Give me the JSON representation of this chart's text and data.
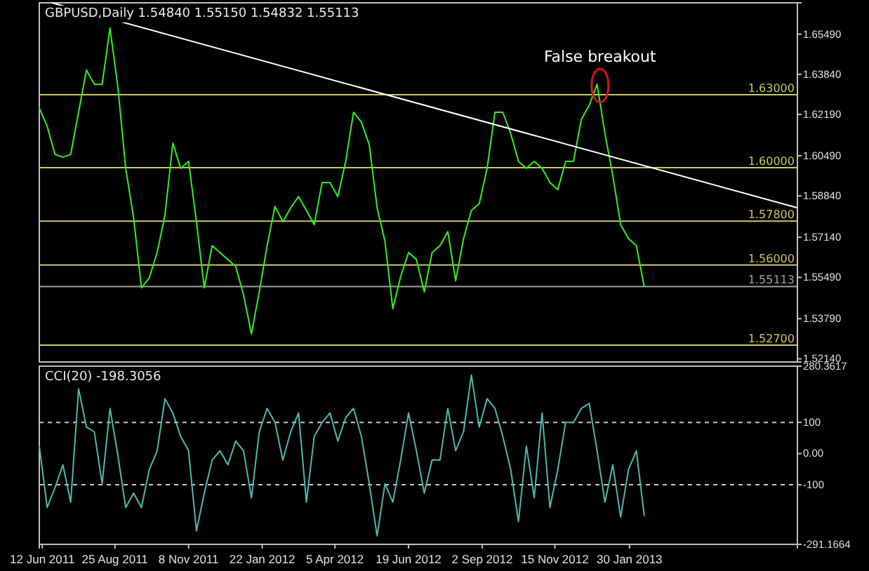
{
  "chart_data": [
    {
      "type": "line",
      "title": "GBPUSD,Daily 1.54840 1.55150 1.54832 1.55113",
      "x": [
        "2011-06-09",
        "2011-06-17",
        "2011-06-25",
        "2011-07-03",
        "2011-07-11",
        "2011-07-19",
        "2011-07-27",
        "2011-08-04",
        "2011-08-12",
        "2011-08-20",
        "2011-08-28",
        "2011-09-05",
        "2011-09-13",
        "2011-09-21",
        "2011-09-29",
        "2011-10-07",
        "2011-10-15",
        "2011-10-23",
        "2011-10-31",
        "2011-11-08",
        "2011-11-16",
        "2011-11-24",
        "2011-12-02",
        "2011-12-10",
        "2011-12-18",
        "2011-12-26",
        "2012-01-03",
        "2012-01-11",
        "2012-01-19",
        "2012-01-27",
        "2012-02-04",
        "2012-02-12",
        "2012-02-20",
        "2012-02-28",
        "2012-03-07",
        "2012-03-15",
        "2012-03-23",
        "2012-03-31",
        "2012-04-08",
        "2012-04-16",
        "2012-04-24",
        "2012-05-02",
        "2012-05-10",
        "2012-05-18",
        "2012-05-26",
        "2012-06-03",
        "2012-06-11",
        "2012-06-19",
        "2012-06-27",
        "2012-07-05",
        "2012-07-13",
        "2012-07-21",
        "2012-07-29",
        "2012-08-06",
        "2012-08-14",
        "2012-08-22",
        "2012-08-30",
        "2012-09-07",
        "2012-09-15",
        "2012-09-23",
        "2012-10-01",
        "2012-10-09",
        "2012-10-17",
        "2012-10-25",
        "2012-11-02",
        "2012-11-10",
        "2012-11-18",
        "2012-11-26",
        "2012-12-04",
        "2012-12-12",
        "2012-12-20",
        "2012-12-28",
        "2013-01-05",
        "2013-01-13",
        "2013-01-21",
        "2013-01-29",
        "2013-02-06",
        "2013-02-14"
      ],
      "series": [
        {
          "color": "#33ee22",
          "values": [
            1.6245,
            1.617,
            1.6055,
            1.6043,
            1.6055,
            1.6228,
            1.6401,
            1.6343,
            1.6343,
            1.6574,
            1.6332,
            1.5997,
            1.5795,
            1.5506,
            1.5547,
            1.5651,
            1.5806,
            1.6101,
            1.5997,
            1.6026,
            1.5778,
            1.5506,
            1.5679,
            1.5651,
            1.5622,
            1.5593,
            1.5477,
            1.5316,
            1.5489,
            1.5679,
            1.5841,
            1.5778,
            1.5835,
            1.5881,
            1.5824,
            1.5766,
            1.5939,
            1.5939,
            1.5881,
            1.6026,
            1.6228,
            1.6187,
            1.6095,
            1.5835,
            1.5697,
            1.542,
            1.5552,
            1.5651,
            1.5622,
            1.5489,
            1.5651,
            1.5679,
            1.5737,
            1.5535,
            1.5708,
            1.5824,
            1.5852,
            1.5997,
            1.6228,
            1.6228,
            1.6141,
            1.6026,
            1.5997,
            1.6026,
            1.5997,
            1.5939,
            1.591,
            1.6026,
            1.6026,
            1.6199,
            1.6256,
            1.6343,
            1.6141,
            1.5968,
            1.5766,
            1.5708,
            1.5679,
            1.5511
          ]
        },
        {
          "type": "line",
          "color": "#ffffff",
          "x": [
            "2011-06-22",
            "2013-07-20"
          ],
          "values": [
            1.6678,
            1.5835
          ]
        }
      ],
      "xlim": [
        "2011-06-09",
        "2013-07-20"
      ],
      "ylim": [
        1.5201,
        1.6678
      ],
      "yticks": [
        {
          "value": 1.6549,
          "label": "1.65490"
        },
        {
          "value": 1.6384,
          "label": "1.63840"
        },
        {
          "value": 1.6219,
          "label": "1.62190"
        },
        {
          "value": 1.6049,
          "label": "1.60490"
        },
        {
          "value": 1.5884,
          "label": "1.58840"
        },
        {
          "value": 1.5714,
          "label": "1.57140"
        },
        {
          "value": 1.5549,
          "label": "1.55490"
        },
        {
          "value": 1.5379,
          "label": "1.53790"
        },
        {
          "value": 1.5214,
          "label": "1.52140"
        }
      ],
      "tick_labels": "y",
      "ref_lines": [
        {
          "axis": "y",
          "value": 1.63,
          "label": "1.63000",
          "color": "#c8c864"
        },
        {
          "axis": "y",
          "value": 1.6,
          "label": "1.60000",
          "color": "#c8c864"
        },
        {
          "axis": "y",
          "value": 1.578,
          "label": "1.57800",
          "color": "#c8c864"
        },
        {
          "axis": "y",
          "value": 1.56,
          "label": "1.56000",
          "color": "#c8c864"
        },
        {
          "axis": "y",
          "value": 1.55113,
          "label": "1.55113",
          "color": "#a0a0a0"
        },
        {
          "axis": "y",
          "value": 1.527,
          "label": "1.52700",
          "color": "#c8c864"
        }
      ],
      "annotations": [
        {
          "text": "False breakout",
          "x": "2012-12-31",
          "y": 1.6384
        }
      ]
    },
    {
      "type": "line",
      "title": "CCI(20) -198.3056",
      "x": [
        "2011-06-09",
        "2011-06-17",
        "2011-06-25",
        "2011-07-03",
        "2011-07-11",
        "2011-07-19",
        "2011-07-27",
        "2011-08-04",
        "2011-08-12",
        "2011-08-20",
        "2011-08-28",
        "2011-09-05",
        "2011-09-13",
        "2011-09-21",
        "2011-09-29",
        "2011-10-07",
        "2011-10-15",
        "2011-10-23",
        "2011-10-31",
        "2011-11-08",
        "2011-11-16",
        "2011-11-24",
        "2011-12-02",
        "2011-12-10",
        "2011-12-18",
        "2011-12-26",
        "2012-01-03",
        "2012-01-11",
        "2012-01-19",
        "2012-01-27",
        "2012-02-04",
        "2012-02-12",
        "2012-02-20",
        "2012-02-28",
        "2012-03-07",
        "2012-03-15",
        "2012-03-23",
        "2012-03-31",
        "2012-04-08",
        "2012-04-16",
        "2012-04-24",
        "2012-05-02",
        "2012-05-10",
        "2012-05-18",
        "2012-05-26",
        "2012-06-03",
        "2012-06-11",
        "2012-06-19",
        "2012-06-27",
        "2012-07-05",
        "2012-07-13",
        "2012-07-21",
        "2012-07-29",
        "2012-08-06",
        "2012-08-14",
        "2012-08-22",
        "2012-08-30",
        "2012-09-07",
        "2012-09-15",
        "2012-09-23",
        "2012-10-01",
        "2012-10-09",
        "2012-10-17",
        "2012-10-25",
        "2012-11-02",
        "2012-11-10",
        "2012-11-18",
        "2012-11-26",
        "2012-12-04",
        "2012-12-12",
        "2012-12-20",
        "2012-12-28",
        "2013-01-05",
        "2013-01-13",
        "2013-01-21",
        "2013-01-29",
        "2013-02-06",
        "2013-02-14"
      ],
      "series": [
        {
          "color": "#4fb8ac",
          "values": [
            24,
            -173,
            -110,
            -36,
            -156,
            208,
            85,
            70,
            -97,
            145,
            -6,
            -173,
            -127,
            -173,
            -51,
            9,
            176,
            130,
            55,
            9,
            -248,
            -127,
            -21,
            9,
            -36,
            40,
            9,
            -142,
            70,
            145,
            100,
            -21,
            70,
            130,
            -156,
            55,
            100,
            130,
            40,
            115,
            145,
            55,
            -97,
            -264,
            -97,
            -156,
            -21,
            130,
            9,
            -127,
            -20,
            -21,
            145,
            9,
            70,
            252,
            85,
            176,
            145,
            55,
            -51,
            -218,
            24,
            -142,
            130,
            -173,
            -51,
            100,
            100,
            145,
            161,
            9,
            -156,
            -36,
            -203,
            -51,
            9,
            -198
          ]
        }
      ],
      "xlim": [
        "2011-06-09",
        "2013-07-20"
      ],
      "xticks": [
        {
          "value": "2011-06-12",
          "label": "12 Jun 2011"
        },
        {
          "value": "2011-08-25",
          "label": "25 Aug 2011"
        },
        {
          "value": "2011-11-08",
          "label": "8 Nov 2011"
        },
        {
          "value": "2012-01-22",
          "label": "22 Jan 2012"
        },
        {
          "value": "2012-04-05",
          "label": "5 Apr 2012"
        },
        {
          "value": "2012-06-19",
          "label": "19 Jun 2012"
        },
        {
          "value": "2012-09-02",
          "label": "2 Sep 2012"
        },
        {
          "value": "2012-11-15",
          "label": "15 Nov 2012"
        },
        {
          "value": "2013-01-30",
          "label": "30 Jan 2013"
        }
      ],
      "ylim": [
        -291.1664,
        280.3617
      ],
      "yticks": [
        {
          "value": 280.3617,
          "label": "280.3617"
        },
        100,
        {
          "value": 0,
          "label": "0.00"
        },
        {
          "value": -100,
          "label": "-100"
        },
        {
          "value": -291.1664,
          "label": "-291.1664"
        }
      ],
      "ref_lines": [
        {
          "axis": "y",
          "value": 100,
          "color": "#c8c8c8",
          "line_style": "dashed"
        },
        {
          "axis": "y",
          "value": -100,
          "color": "#c8c8c8",
          "line_style": "dashed"
        }
      ]
    }
  ]
}
